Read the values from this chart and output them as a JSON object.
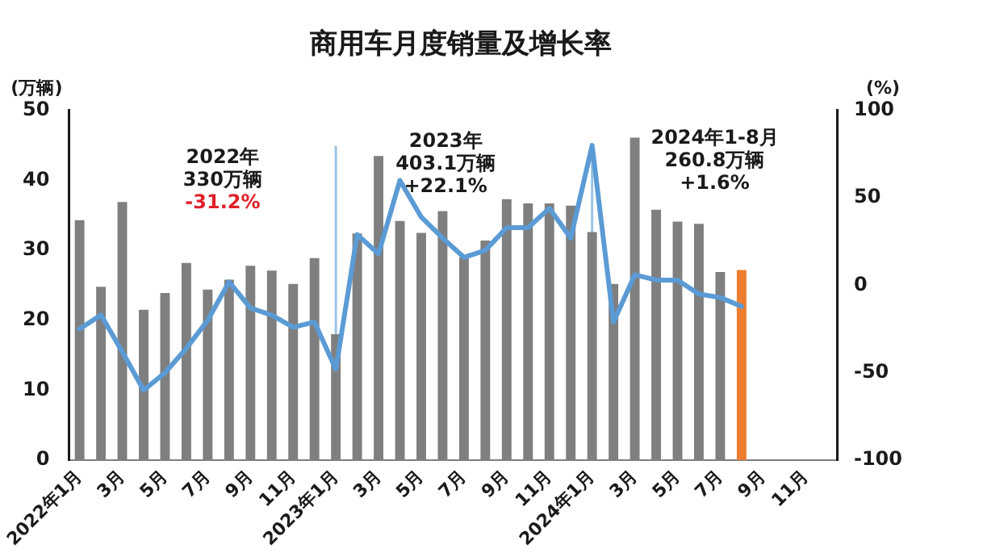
{
  "chart_data": {
    "type": "bar",
    "title": "商用车月度销量及增长率",
    "ylabel": "(万辆)",
    "y2label": "(%)",
    "categories": [
      "2022年1月",
      null,
      "3月",
      null,
      "5月",
      null,
      "7月",
      null,
      "9月",
      null,
      "11月",
      null,
      "2023年1月",
      null,
      "3月",
      null,
      "5月",
      null,
      "7月",
      null,
      "9月",
      null,
      "11月",
      null,
      "2024年1月",
      null,
      "3月",
      null,
      "5月",
      null,
      "7月",
      null,
      "9月",
      null,
      "11月",
      null
    ],
    "series": [
      {
        "colors": [
          "#7f7f7f",
          "#7f7f7f",
          "#7f7f7f",
          "#7f7f7f",
          "#7f7f7f",
          "#7f7f7f",
          "#7f7f7f",
          "#7f7f7f",
          "#7f7f7f",
          "#7f7f7f",
          "#7f7f7f",
          "#7f7f7f",
          "#7f7f7f",
          "#7f7f7f",
          "#7f7f7f",
          "#7f7f7f",
          "#7f7f7f",
          "#7f7f7f",
          "#7f7f7f",
          "#7f7f7f",
          "#7f7f7f",
          "#7f7f7f",
          "#7f7f7f",
          "#7f7f7f",
          "#7f7f7f",
          "#7f7f7f",
          "#7f7f7f",
          "#7f7f7f",
          "#7f7f7f",
          "#7f7f7f",
          "#7f7f7f",
          "#ed7d31",
          null,
          null,
          null,
          null
        ],
        "values": [
          34.3,
          24.8,
          36.9,
          21.5,
          23.9,
          28.2,
          24.4,
          25.8,
          27.8,
          27.1,
          25.2,
          28.9,
          18.0,
          32.4,
          43.5,
          34.2,
          32.5,
          35.6,
          29.0,
          31.4,
          37.3,
          36.7,
          36.7,
          36.4,
          32.6,
          25.2,
          46.1,
          35.8,
          34.1,
          33.8,
          26.9,
          27.2,
          null,
          null,
          null,
          null
        ]
      },
      {
        "type": "line",
        "axis": "y2",
        "color": "#5b9bd5",
        "values": [
          -25,
          -17,
          -38,
          -60,
          -50,
          -36,
          -20,
          2,
          -13,
          -17,
          -24,
          -21,
          -48,
          29,
          18,
          60,
          39,
          27,
          16,
          20,
          33,
          33,
          44,
          27,
          80,
          -21,
          6,
          3,
          3,
          -5,
          -7,
          -12,
          null,
          null,
          null,
          null
        ]
      }
    ],
    "ylim": [
      0,
      50
    ],
    "yticks": [
      0,
      10,
      20,
      30,
      40,
      50
    ],
    "y2lim": [
      -100,
      100
    ],
    "y2ticks": [
      -100,
      -50,
      0,
      50,
      100
    ],
    "ref_lines": [
      {
        "axis": "x",
        "value": "2023年1月",
        "color": "#9dc3e6"
      },
      {
        "axis": "x",
        "value": "2024年1月",
        "color": "#9dc3e6"
      }
    ],
    "annotations": [
      "2022年\n330万辆\n-31.2%",
      "2023年\n403.1万辆\n+22.1%",
      "2024年1-8月\n260.8万辆\n+1.6%"
    ],
    "grid": false,
    "legend": false,
    "marker": "none",
    "line_style": "solid"
  }
}
